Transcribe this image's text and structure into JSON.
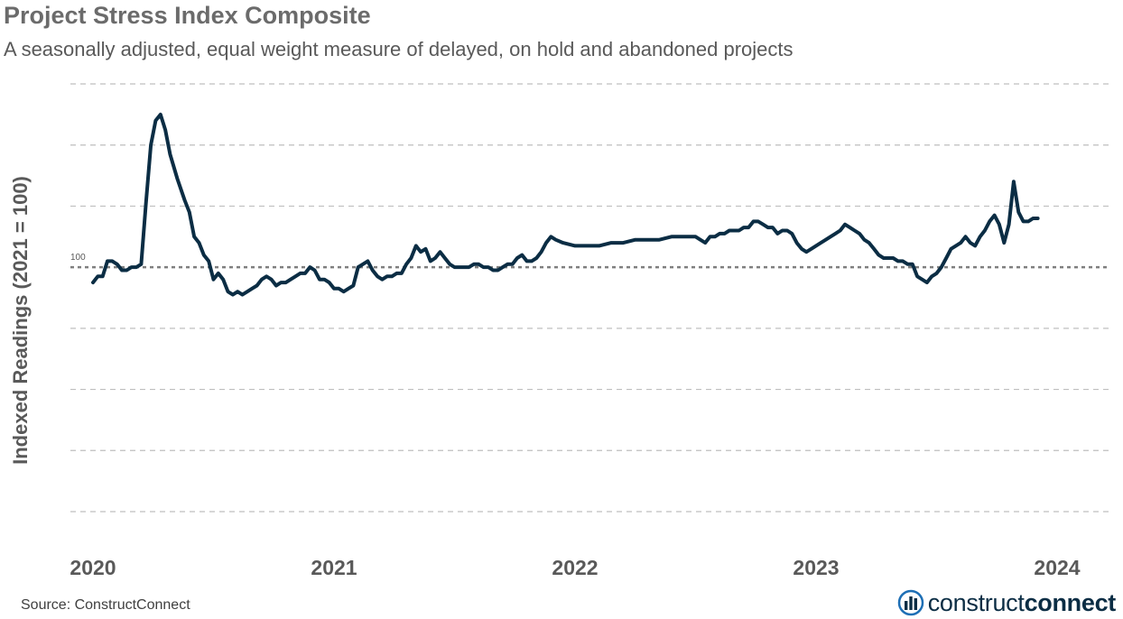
{
  "chart_data": {
    "type": "line",
    "title": "Project Stress Index Composite",
    "subtitle": "A seasonally adjusted, equal weight measure of delayed, on hold and abandoned projects",
    "ylabel": "Indexed Readings (2021 = 100)",
    "xlabel": "",
    "x_ticks": [
      "2020",
      "2021",
      "2022",
      "2023",
      "2024"
    ],
    "reference_line": {
      "value": 100,
      "label": "100"
    },
    "ylim": [
      20,
      160
    ],
    "grid": "horizontal dashed",
    "series": [
      {
        "values": [
          [
            2020.0,
            95
          ],
          [
            2020.02,
            97
          ],
          [
            2020.04,
            97
          ],
          [
            2020.06,
            102
          ],
          [
            2020.08,
            102
          ],
          [
            2020.1,
            101
          ],
          [
            2020.12,
            99
          ],
          [
            2020.14,
            99
          ],
          [
            2020.16,
            100
          ],
          [
            2020.18,
            100
          ],
          [
            2020.2,
            101
          ],
          [
            2020.22,
            121
          ],
          [
            2020.24,
            140
          ],
          [
            2020.26,
            148
          ],
          [
            2020.28,
            150
          ],
          [
            2020.3,
            145
          ],
          [
            2020.32,
            137
          ],
          [
            2020.35,
            129
          ],
          [
            2020.38,
            122
          ],
          [
            2020.4,
            118
          ],
          [
            2020.42,
            110
          ],
          [
            2020.44,
            108
          ],
          [
            2020.46,
            104
          ],
          [
            2020.48,
            102
          ],
          [
            2020.5,
            96
          ],
          [
            2020.52,
            98
          ],
          [
            2020.54,
            96
          ],
          [
            2020.56,
            92
          ],
          [
            2020.58,
            91
          ],
          [
            2020.6,
            92
          ],
          [
            2020.62,
            91
          ],
          [
            2020.64,
            92
          ],
          [
            2020.66,
            93
          ],
          [
            2020.68,
            94
          ],
          [
            2020.7,
            96
          ],
          [
            2020.72,
            97
          ],
          [
            2020.74,
            96
          ],
          [
            2020.76,
            94
          ],
          [
            2020.78,
            95
          ],
          [
            2020.8,
            95
          ],
          [
            2020.82,
            96
          ],
          [
            2020.84,
            97
          ],
          [
            2020.86,
            98
          ],
          [
            2020.88,
            98
          ],
          [
            2020.9,
            100
          ],
          [
            2020.92,
            99
          ],
          [
            2020.94,
            96
          ],
          [
            2020.96,
            96
          ],
          [
            2020.98,
            95
          ],
          [
            2021.0,
            93
          ],
          [
            2021.02,
            93
          ],
          [
            2021.04,
            92
          ],
          [
            2021.06,
            93
          ],
          [
            2021.08,
            94
          ],
          [
            2021.1,
            100
          ],
          [
            2021.12,
            101
          ],
          [
            2021.14,
            102
          ],
          [
            2021.16,
            99
          ],
          [
            2021.18,
            97
          ],
          [
            2021.2,
            96
          ],
          [
            2021.22,
            97
          ],
          [
            2021.24,
            97
          ],
          [
            2021.26,
            98
          ],
          [
            2021.28,
            98
          ],
          [
            2021.3,
            101
          ],
          [
            2021.32,
            103
          ],
          [
            2021.34,
            107
          ],
          [
            2021.36,
            105
          ],
          [
            2021.38,
            106
          ],
          [
            2021.4,
            102
          ],
          [
            2021.42,
            103
          ],
          [
            2021.44,
            105
          ],
          [
            2021.46,
            103
          ],
          [
            2021.48,
            101
          ],
          [
            2021.5,
            100
          ],
          [
            2021.52,
            100
          ],
          [
            2021.54,
            100
          ],
          [
            2021.56,
            100
          ],
          [
            2021.58,
            101
          ],
          [
            2021.6,
            101
          ],
          [
            2021.62,
            100
          ],
          [
            2021.64,
            100
          ],
          [
            2021.66,
            99
          ],
          [
            2021.68,
            99
          ],
          [
            2021.7,
            100
          ],
          [
            2021.72,
            101
          ],
          [
            2021.74,
            101
          ],
          [
            2021.76,
            103
          ],
          [
            2021.78,
            104
          ],
          [
            2021.8,
            102
          ],
          [
            2021.82,
            102
          ],
          [
            2021.84,
            103
          ],
          [
            2021.86,
            105
          ],
          [
            2021.88,
            108
          ],
          [
            2021.9,
            110
          ],
          [
            2021.92,
            109
          ],
          [
            2021.95,
            108
          ],
          [
            2022.0,
            107
          ],
          [
            2022.05,
            107
          ],
          [
            2022.1,
            107
          ],
          [
            2022.15,
            108
          ],
          [
            2022.2,
            108
          ],
          [
            2022.25,
            109
          ],
          [
            2022.3,
            109
          ],
          [
            2022.35,
            109
          ],
          [
            2022.4,
            110
          ],
          [
            2022.45,
            110
          ],
          [
            2022.5,
            110
          ],
          [
            2022.52,
            109
          ],
          [
            2022.54,
            108
          ],
          [
            2022.56,
            110
          ],
          [
            2022.58,
            110
          ],
          [
            2022.6,
            111
          ],
          [
            2022.62,
            111
          ],
          [
            2022.64,
            112
          ],
          [
            2022.66,
            112
          ],
          [
            2022.68,
            112
          ],
          [
            2022.7,
            113
          ],
          [
            2022.72,
            113
          ],
          [
            2022.74,
            115
          ],
          [
            2022.76,
            115
          ],
          [
            2022.78,
            114
          ],
          [
            2022.8,
            113
          ],
          [
            2022.82,
            113
          ],
          [
            2022.84,
            111
          ],
          [
            2022.86,
            112
          ],
          [
            2022.88,
            112
          ],
          [
            2022.9,
            111
          ],
          [
            2022.92,
            108
          ],
          [
            2022.94,
            106
          ],
          [
            2022.96,
            105
          ],
          [
            2022.98,
            106
          ],
          [
            2023.0,
            107
          ],
          [
            2023.02,
            108
          ],
          [
            2023.04,
            109
          ],
          [
            2023.06,
            110
          ],
          [
            2023.08,
            111
          ],
          [
            2023.1,
            112
          ],
          [
            2023.12,
            114
          ],
          [
            2023.14,
            113
          ],
          [
            2023.16,
            112
          ],
          [
            2023.18,
            111
          ],
          [
            2023.2,
            109
          ],
          [
            2023.22,
            108
          ],
          [
            2023.24,
            106
          ],
          [
            2023.26,
            104
          ],
          [
            2023.28,
            103
          ],
          [
            2023.3,
            103
          ],
          [
            2023.32,
            103
          ],
          [
            2023.34,
            102
          ],
          [
            2023.36,
            102
          ],
          [
            2023.38,
            101
          ],
          [
            2023.4,
            101
          ],
          [
            2023.42,
            97
          ],
          [
            2023.44,
            96
          ],
          [
            2023.46,
            95
          ],
          [
            2023.48,
            97
          ],
          [
            2023.5,
            98
          ],
          [
            2023.52,
            100
          ],
          [
            2023.54,
            103
          ],
          [
            2023.56,
            106
          ],
          [
            2023.58,
            107
          ],
          [
            2023.6,
            108
          ],
          [
            2023.62,
            110
          ],
          [
            2023.64,
            108
          ],
          [
            2023.66,
            107
          ],
          [
            2023.68,
            110
          ],
          [
            2023.7,
            112
          ],
          [
            2023.72,
            115
          ],
          [
            2023.74,
            117
          ],
          [
            2023.76,
            114
          ],
          [
            2023.78,
            108
          ],
          [
            2023.8,
            114
          ],
          [
            2023.82,
            128
          ],
          [
            2023.84,
            118
          ],
          [
            2023.86,
            115
          ],
          [
            2023.88,
            115
          ],
          [
            2023.9,
            116
          ],
          [
            2023.92,
            116
          ]
        ]
      }
    ]
  },
  "source": "Source: ConstructConnect",
  "logo": {
    "light": "construct",
    "bold": "connect"
  },
  "colors": {
    "line": "#0b2d44",
    "grid": "#bfbfbf",
    "reference": "#7f7f7f",
    "axis_text": "#595959"
  }
}
